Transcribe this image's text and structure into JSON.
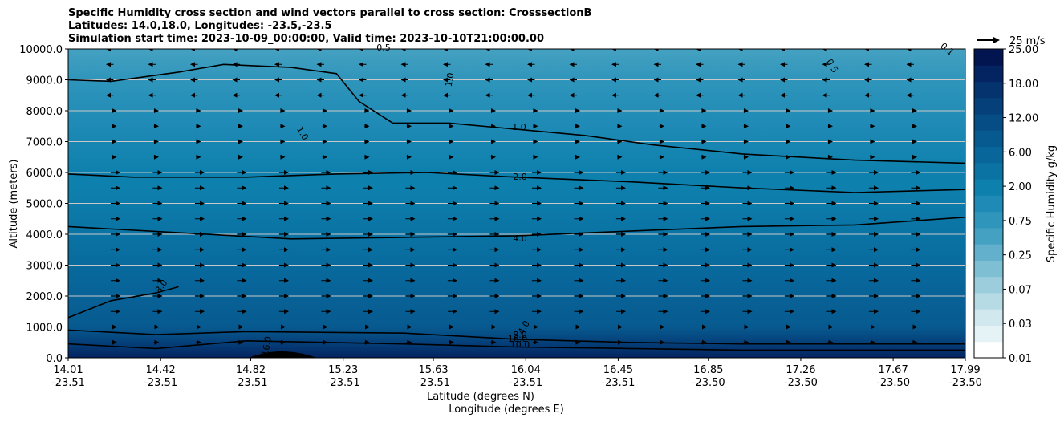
{
  "chart_data": {
    "type": "heatmap",
    "title_lines": [
      "Specific Humidity cross section and wind vectors parallel to cross section: CrosssectionB",
      "Latitudes: 14.0,18.0, Longitudes: -23.5,-23.5",
      "Simulation start time: 2023-10-09_00:00:00, Valid time: 2023-10-10T21:00:00.00"
    ],
    "ylabel": "Altitude (meters)",
    "xlabel_lat": "Latitude (degrees N)",
    "xlabel_lon": "Longitude (degrees E)",
    "ylim": [
      0,
      10000
    ],
    "y_ticks": [
      "0.0",
      "1000.0",
      "2000.0",
      "3000.0",
      "4000.0",
      "5000.0",
      "6000.0",
      "7000.0",
      "8000.0",
      "9000.0",
      "10000.0"
    ],
    "x_ticks": [
      {
        "lat": "14.01",
        "lon": "-23.51"
      },
      {
        "lat": "14.42",
        "lon": "-23.51"
      },
      {
        "lat": "14.82",
        "lon": "-23.51"
      },
      {
        "lat": "15.23",
        "lon": "-23.51"
      },
      {
        "lat": "15.63",
        "lon": "-23.51"
      },
      {
        "lat": "16.04",
        "lon": "-23.51"
      },
      {
        "lat": "16.45",
        "lon": "-23.51"
      },
      {
        "lat": "16.85",
        "lon": "-23.50"
      },
      {
        "lat": "17.26",
        "lon": "-23.50"
      },
      {
        "lat": "17.67",
        "lon": "-23.50"
      },
      {
        "lat": "17.99",
        "lon": "-23.50"
      }
    ],
    "grid": true,
    "colorbar": {
      "label": "Specific Humidity g/kg",
      "levels": [
        0.01,
        0.02,
        0.03,
        0.05,
        0.07,
        0.1,
        0.25,
        0.5,
        0.75,
        1,
        2,
        4,
        6,
        8,
        12,
        14,
        18,
        20,
        25
      ],
      "tick_labels": [
        "0.01",
        "0.03",
        "0.07",
        "0.25",
        "0.75",
        "2.00",
        "6.00",
        "12.00",
        "18.00",
        "25.00"
      ],
      "colors": [
        "#ffffff",
        "#e6f3f6",
        "#d0e8ee",
        "#b6dbe5",
        "#9bcddc",
        "#7fbfd4",
        "#62b0cb",
        "#45a1c1",
        "#2f95bb",
        "#1e8ab5",
        "#0e80ad",
        "#0a73a4",
        "#08669a",
        "#075a90",
        "#064d85",
        "#05407a",
        "#04336e",
        "#032460",
        "#021550"
      ]
    },
    "quiver_key": "25 m/s",
    "humidity_by_altitude": [
      {
        "altitude_m": 0,
        "value": 20
      },
      {
        "altitude_m": 500,
        "value": 14
      },
      {
        "altitude_m": 1000,
        "value": 9
      },
      {
        "altitude_m": 2500,
        "value": 7
      },
      {
        "altitude_m": 4000,
        "value": 4
      },
      {
        "altitude_m": 5500,
        "value": 2.5
      },
      {
        "altitude_m": 6000,
        "value": 2
      },
      {
        "altitude_m": 7500,
        "value": 1.2
      },
      {
        "altitude_m": 9000,
        "value": 0.8
      },
      {
        "altitude_m": 10000,
        "value": 0.7
      }
    ],
    "contour_labels": [
      "0.5",
      "1.0",
      "1.0",
      "1.0",
      "2.0",
      "4.0",
      "8.0",
      "4.0",
      "8.0",
      "10.0",
      "16.0",
      "16.0",
      "0.5",
      "0.1"
    ],
    "contours": [
      {
        "value": "1.0",
        "x": [
          14.01,
          14.2,
          14.5,
          14.7,
          15.0,
          15.2,
          15.3,
          15.45,
          15.7,
          16.0,
          16.3,
          16.6,
          17.0,
          17.5,
          17.99
        ],
        "alt": [
          9000,
          8950,
          9250,
          9500,
          9400,
          9200,
          8300,
          7600,
          7600,
          7400,
          7200,
          6900,
          6600,
          6400,
          6300
        ]
      },
      {
        "value": "2.0",
        "x": [
          14.01,
          14.3,
          14.8,
          15.2,
          15.6,
          16.0,
          16.5,
          17.0,
          17.5,
          17.99
        ],
        "alt": [
          5950,
          5850,
          5850,
          5950,
          6000,
          5850,
          5700,
          5500,
          5350,
          5450
        ]
      },
      {
        "value": "4.0",
        "x": [
          14.01,
          14.5,
          15.0,
          15.5,
          16.0,
          16.5,
          17.0,
          17.5,
          17.99
        ],
        "alt": [
          4250,
          4050,
          3850,
          3900,
          3950,
          4100,
          4250,
          4300,
          4550
        ]
      },
      {
        "value": "8.0",
        "x": [
          14.01,
          14.2,
          14.4,
          14.5
        ],
        "alt": [
          1300,
          1850,
          2100,
          2300
        ]
      },
      {
        "value": "10.0",
        "x": [
          14.01,
          14.4,
          14.8,
          15.5,
          16.0,
          16.5,
          17.0,
          17.99
        ],
        "alt": [
          900,
          750,
          850,
          800,
          600,
          500,
          450,
          450
        ]
      },
      {
        "value": "16.0",
        "x": [
          14.01,
          14.4,
          14.8,
          15.5,
          16.0,
          16.5,
          17.0,
          17.99
        ],
        "alt": [
          450,
          300,
          550,
          450,
          350,
          300,
          250,
          250
        ]
      }
    ]
  }
}
